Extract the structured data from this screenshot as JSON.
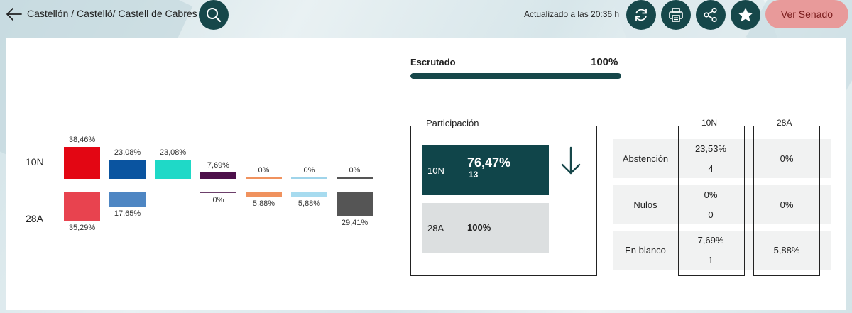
{
  "header": {
    "breadcrumb": "Castellón / Castelló/ Castell de Cabres",
    "updated": "Actualizado a las 20:36 h",
    "senado_button": "Ver Senado"
  },
  "scrutiny": {
    "label": "Escrutado",
    "percent_text": "100%",
    "percent": 100
  },
  "chart_data": {
    "type": "bar",
    "series": [
      {
        "name": "10N",
        "values": [
          38.46,
          23.08,
          23.08,
          7.69,
          0,
          0,
          0
        ],
        "labels": [
          "38,46%",
          "23,08%",
          "23,08%",
          "7,69%",
          "0%",
          "0%",
          "0%"
        ]
      },
      {
        "name": "28A",
        "values": [
          35.29,
          17.65,
          0,
          0,
          5.88,
          5.88,
          29.41
        ],
        "labels": [
          "35,29%",
          "17,65%",
          "",
          "0%",
          "5,88%",
          "5,88%",
          "29,41%"
        ]
      }
    ],
    "colors": [
      "#e30613",
      "#0a54a0",
      "#1fd9c7",
      "#4d0f4a",
      "#f0925e",
      "#9fd4ea",
      "#555555"
    ],
    "colors_28a": [
      "#e8434f",
      "#4e86c3",
      "#1fd9c7",
      "#6c3f6a",
      "#f0925e",
      "#a7dbef",
      "#555555"
    ]
  },
  "participation": {
    "title": "Participación",
    "rows": [
      {
        "name": "10N",
        "percent": "76,47%",
        "count": "13"
      },
      {
        "name": "28A",
        "percent": "100%",
        "count": ""
      }
    ],
    "trend_icon": "arrow-down-icon"
  },
  "table": {
    "columns": [
      "10N",
      "28A"
    ],
    "rows": [
      {
        "label": "Abstención",
        "n10_pct": "23,53%",
        "n10_count": "4",
        "a28": "0%"
      },
      {
        "label": "Nulos",
        "n10_pct": "0%",
        "n10_count": "0",
        "a28": "0%"
      },
      {
        "label": "En blanco",
        "n10_pct": "7,69%",
        "n10_count": "1",
        "a28": "5,88%"
      }
    ]
  }
}
